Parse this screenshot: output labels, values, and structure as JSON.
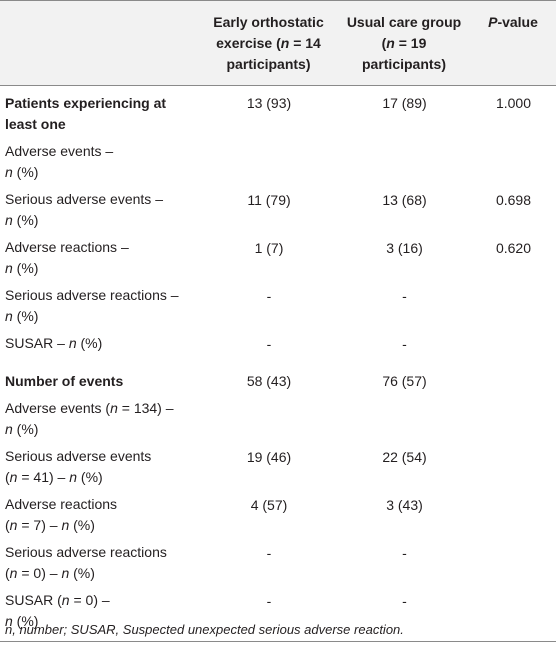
{
  "header": {
    "c1": "",
    "c2": [
      "Early orthostatic",
      "exercise (",
      "n",
      " = 14",
      "participants)"
    ],
    "c3": [
      "Usual care group",
      "(",
      "n",
      " = 19",
      "participants)"
    ],
    "c4": [
      "P",
      "-value"
    ]
  },
  "rows": [
    {
      "label": [
        "Patients experiencing at least one"
      ],
      "bold": true,
      "v1": "13 (93)",
      "v2": "17 (89)",
      "p": "1.000"
    },
    {
      "label": [
        "Adverse events –",
        "n",
        " (%)"
      ],
      "v1": "",
      "v2": "",
      "p": ""
    },
    {
      "label": [
        "Serious adverse events –",
        "n",
        " (%)"
      ],
      "v1": "11 (79)",
      "v2": "13 (68)",
      "p": "0.698"
    },
    {
      "label": [
        "Adverse reactions –",
        "n",
        " (%)"
      ],
      "v1": "1 (7)",
      "v2": "3 (16)",
      "p": "0.620"
    },
    {
      "label": [
        "Serious adverse reactions –",
        "n",
        " (%)"
      ],
      "v1": "-",
      "v2": "-",
      "p": ""
    },
    {
      "label": [
        "SUSAR – ",
        "n",
        " (%)"
      ],
      "v1": "-",
      "v2": "-",
      "p": ""
    },
    {
      "label": [
        "Number of events"
      ],
      "bold": true,
      "v1": "58 (43)",
      "v2": "76 (57)",
      "p": ""
    },
    {
      "label": [
        "Adverse events (",
        "n",
        " = 134) –",
        "n",
        " (%)"
      ],
      "v1": "",
      "v2": "",
      "p": ""
    },
    {
      "label": [
        "Serious adverse events (",
        "n",
        " = 41) – ",
        "n",
        " (%)"
      ],
      "v1": "19 (46)",
      "v2": "22 (54)",
      "p": ""
    },
    {
      "label": [
        "Adverse reactions (",
        "n",
        " = 7) – ",
        "n",
        " (%)"
      ],
      "v1": "4 (57)",
      "v2": "3 (43)",
      "p": ""
    },
    {
      "label": [
        "Serious adverse reactions (",
        "n",
        " = 0) – ",
        "n",
        " (%)"
      ],
      "v1": "-",
      "v2": "-",
      "p": ""
    },
    {
      "label": [
        "SUSAR (",
        "n",
        " = 0) –",
        "n",
        " (%)"
      ],
      "v1": "-",
      "v2": "-",
      "p": ""
    }
  ],
  "footnote": "n, number; SUSAR, Suspected unexpected serious adverse reaction."
}
